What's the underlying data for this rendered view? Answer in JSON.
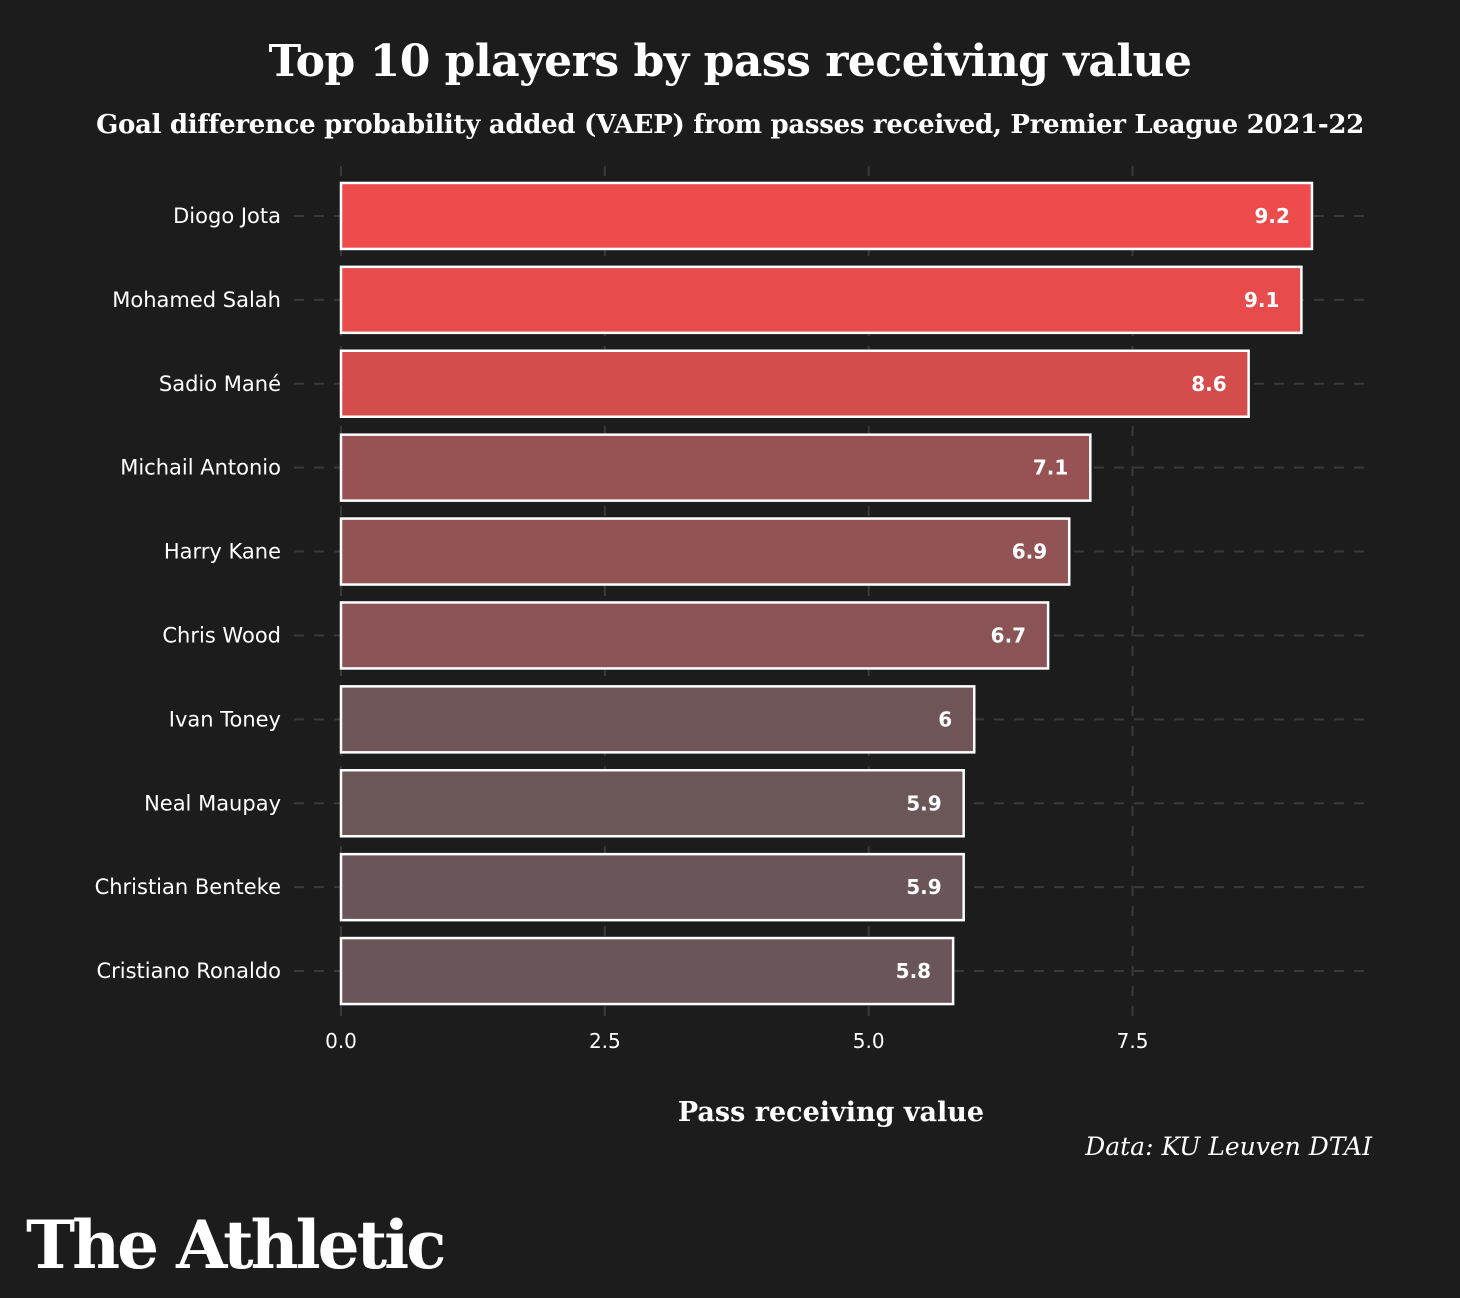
{
  "chart_data": {
    "type": "bar",
    "orientation": "horizontal",
    "title": "Top 10 players by pass receiving value",
    "subtitle": "Goal difference probability added (VAEP) from passes received, Premier League 2021-22",
    "categories": [
      "Diogo Jota",
      "Mohamed Salah",
      "Sadio Mané",
      "Michail Antonio",
      "Harry Kane",
      "Chris Wood",
      "Ivan Toney",
      "Neal Maupay",
      "Christian Benteke",
      "Cristiano Ronaldo"
    ],
    "values": [
      9.2,
      9.1,
      8.6,
      7.1,
      6.9,
      6.7,
      6,
      5.9,
      5.9,
      5.8
    ],
    "data_labels": [
      "9.2",
      "9.1",
      "8.6",
      "7.1",
      "6.9",
      "6.7",
      "6",
      "5.9",
      "5.9",
      "5.8"
    ],
    "bar_colors": [
      "#ee4b4c",
      "#e84b4c",
      "#d54c4d",
      "#995254",
      "#925355",
      "#8a5457",
      "#705558",
      "#6b5658",
      "#6a5658",
      "#6a5658"
    ],
    "xlabel": "Pass receiving value",
    "ylabel": "",
    "xlim": [
      0,
      9.75
    ],
    "xticks": [
      0,
      2.5,
      5,
      7.5
    ],
    "xtick_labels": [
      "0.0",
      "2.5",
      "5.0",
      "7.5"
    ],
    "grid": true,
    "source": "Data: KU Leuven DTAI"
  },
  "colors": {
    "background": "#1c1c1c",
    "grid": "#3a3a3a",
    "bar_outline": "#ffffff"
  },
  "brand": "The Athletic"
}
